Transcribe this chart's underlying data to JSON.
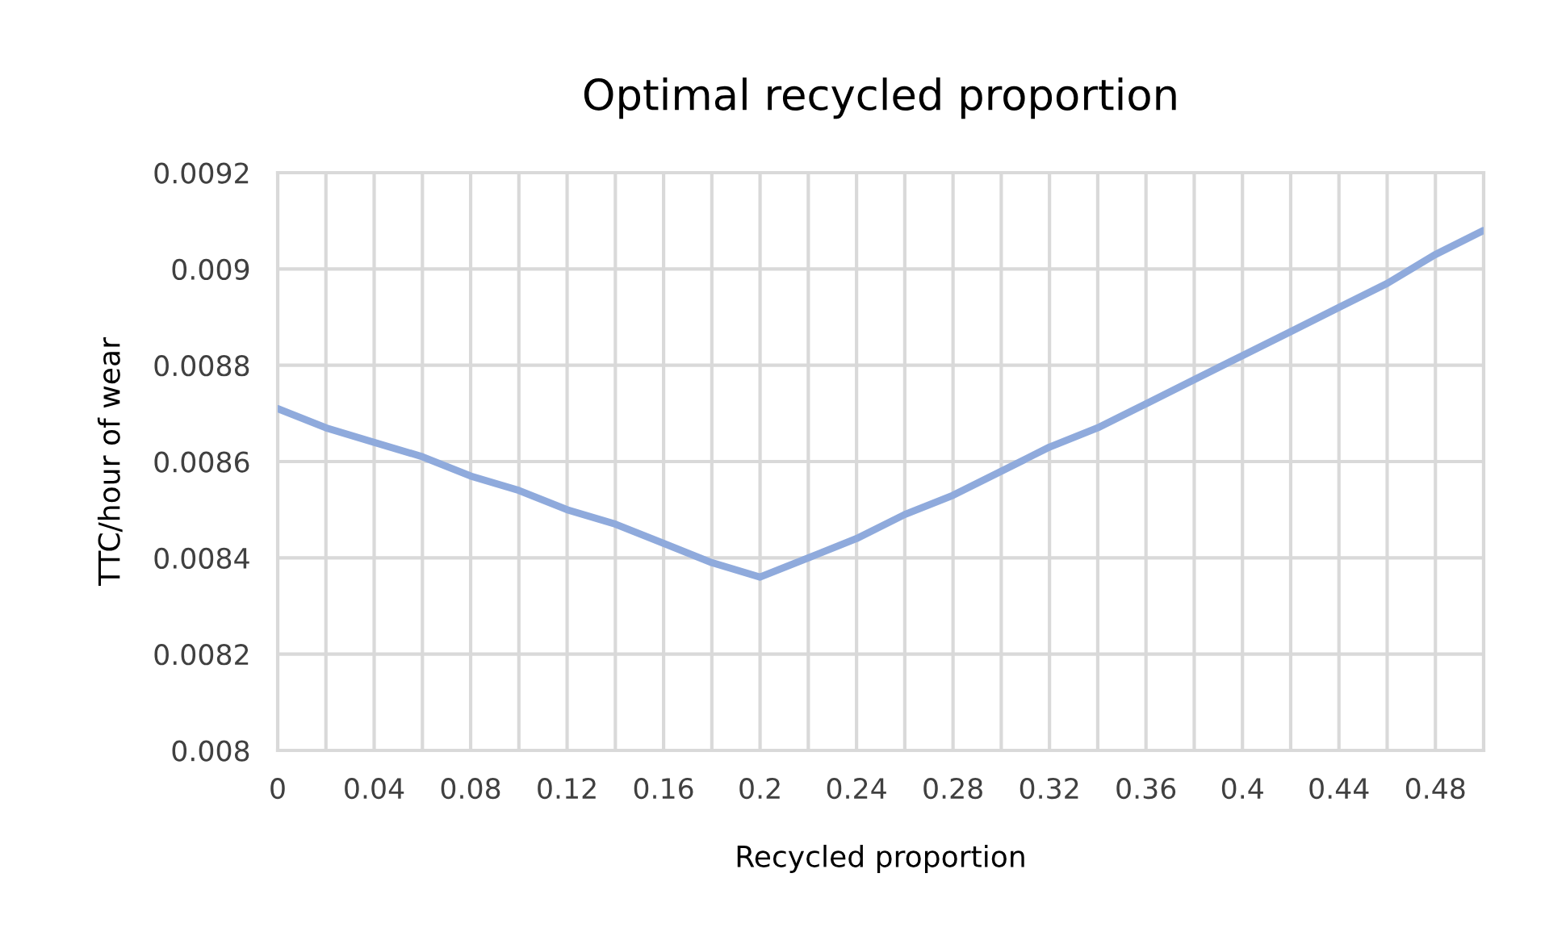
{
  "chart_data": {
    "type": "line",
    "title": "Optimal recycled proportion",
    "xlabel": "Recycled proportion",
    "ylabel": "TTC/hour of wear",
    "x": [
      0,
      0.02,
      0.04,
      0.06,
      0.08,
      0.1,
      0.12,
      0.14,
      0.16,
      0.18,
      0.2,
      0.22,
      0.24,
      0.26,
      0.28,
      0.3,
      0.32,
      0.34,
      0.36,
      0.38,
      0.4,
      0.42,
      0.44,
      0.46,
      0.48,
      0.5
    ],
    "series": [
      {
        "color": "#8faadc",
        "values": [
          0.00871,
          0.00867,
          0.00864,
          0.00861,
          0.00857,
          0.00854,
          0.0085,
          0.00847,
          0.00843,
          0.00839,
          0.00836,
          0.0084,
          0.00844,
          0.00849,
          0.00853,
          0.00858,
          0.00863,
          0.00867,
          0.00872,
          0.00877,
          0.00882,
          0.00887,
          0.00892,
          0.00897,
          0.00903,
          0.00908
        ]
      }
    ],
    "xlim": [
      0,
      0.5
    ],
    "xticks": [
      0,
      {
        "value": 0.02,
        "label": null
      },
      0.04,
      {
        "value": 0.06,
        "label": null
      },
      0.08,
      {
        "value": 0.1,
        "label": null
      },
      0.12,
      {
        "value": 0.14,
        "label": null
      },
      0.16,
      {
        "value": 0.18,
        "label": null
      },
      0.2,
      {
        "value": 0.22,
        "label": null
      },
      0.24,
      {
        "value": 0.26,
        "label": null
      },
      0.28,
      {
        "value": 0.3,
        "label": null
      },
      0.32,
      {
        "value": 0.34,
        "label": null
      },
      0.36,
      {
        "value": 0.38,
        "label": null
      },
      0.4,
      {
        "value": 0.42,
        "label": null
      },
      0.44,
      {
        "value": 0.46,
        "label": null
      },
      0.48,
      {
        "value": 0.5,
        "label": null
      }
    ],
    "ylim": [
      0.008,
      0.0092
    ],
    "yticks": [
      0.008,
      0.0082,
      0.0084,
      0.0086,
      0.0088,
      0.009,
      0.0092
    ],
    "grid": true,
    "legend": false,
    "marker": "none",
    "line_style": "solid"
  }
}
